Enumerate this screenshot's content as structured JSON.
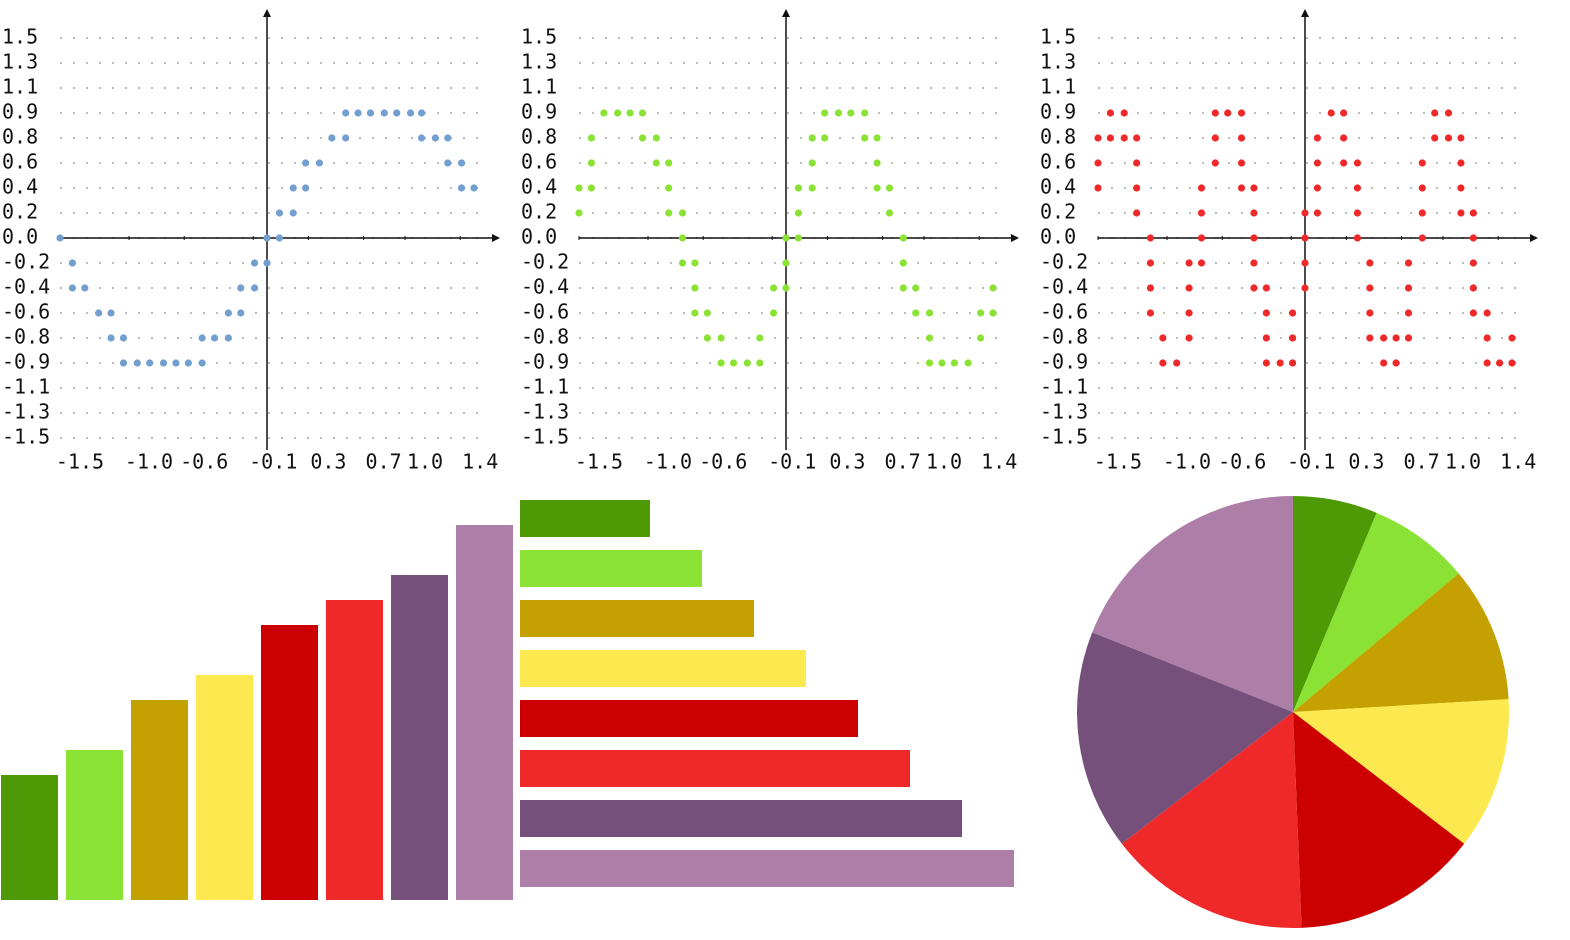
{
  "chart_data": [
    {
      "type": "scatter",
      "color": "#729fcf",
      "xlim": [
        -1.5,
        1.5
      ],
      "ylim": [
        -1.5,
        1.5
      ],
      "grid": true,
      "xticks": [
        -1.5,
        {
          "value": -1,
          "label": "-1.0"
        },
        -0.6,
        -0.1,
        0.3,
        0.7,
        {
          "value": 1,
          "label": "1.0"
        },
        1.4
      ],
      "yticks": [
        1.5,
        {
          "value": 1.3125,
          "label": "1.3"
        },
        {
          "value": 1.125,
          "label": "1.1"
        },
        {
          "value": 0.9375,
          "label": "0.9"
        },
        {
          "value": 0.75,
          "label": "0.8"
        },
        {
          "value": 0.5625,
          "label": "0.6"
        },
        {
          "value": 0.375,
          "label": "0.4"
        },
        {
          "value": 0.1875,
          "label": "0.2"
        },
        {
          "value": 0,
          "label": "0.0"
        },
        {
          "value": -0.1875,
          "label": "-0.2"
        },
        {
          "value": -0.375,
          "label": "-0.4"
        },
        {
          "value": -0.5625,
          "label": "-0.6"
        },
        {
          "value": -0.75,
          "label": "-0.8"
        },
        {
          "value": -0.9375,
          "label": "-0.9"
        },
        {
          "value": -1.125,
          "label": "-1.1"
        },
        {
          "value": -1.3125,
          "label": "-1.3"
        },
        -1.5
      ],
      "x": [
        0.57,
        0.66,
        0.75,
        0.85,
        0.94,
        1.04,
        1.12,
        0.47,
        0.57,
        1.12,
        1.22,
        1.31,
        0.28,
        0.38,
        1.31,
        1.41,
        0.19,
        0.28,
        1.41,
        1.5,
        0.09,
        0.19,
        -1.5,
        0,
        0.09,
        -1.41,
        -0.09,
        0,
        -1.41,
        -1.32,
        -0.19,
        -0.09,
        -1.22,
        -1.13,
        -0.28,
        -0.19,
        -1.13,
        -1.04,
        -0.47,
        -0.38,
        -0.28,
        -1.04,
        -0.94,
        -0.85,
        -0.75,
        -0.66,
        -0.57,
        -0.47
      ],
      "values": [
        0.9375,
        0.9375,
        0.9375,
        0.9375,
        0.9375,
        0.9375,
        0.9375,
        0.75,
        0.75,
        0.75,
        0.75,
        0.75,
        0.5625,
        0.5625,
        0.5625,
        0.5625,
        0.375,
        0.375,
        0.375,
        0.375,
        0.1875,
        0.1875,
        0,
        0,
        0,
        -0.1875,
        -0.1875,
        -0.1875,
        -0.375,
        -0.375,
        -0.375,
        -0.375,
        -0.5625,
        -0.5625,
        -0.5625,
        -0.5625,
        -0.75,
        -0.75,
        -0.75,
        -0.75,
        -0.75,
        -0.9375,
        -0.9375,
        -0.9375,
        -0.9375,
        -0.9375,
        -0.9375,
        -0.9375
      ]
    },
    {
      "type": "scatter",
      "color": "#8ae234",
      "xlim": [
        -1.5,
        1.5
      ],
      "ylim": [
        -1.5,
        1.5
      ],
      "grid": true,
      "xticks": [
        -1.5,
        {
          "value": -1,
          "label": "-1.0"
        },
        -0.6,
        -0.1,
        0.3,
        0.7,
        {
          "value": 1,
          "label": "1.0"
        },
        1.4
      ],
      "yticks": [
        1.5,
        {
          "value": 1.3125,
          "label": "1.3"
        },
        {
          "value": 1.125,
          "label": "1.1"
        },
        {
          "value": 0.9375,
          "label": "0.9"
        },
        {
          "value": 0.75,
          "label": "0.8"
        },
        {
          "value": 0.5625,
          "label": "0.6"
        },
        {
          "value": 0.375,
          "label": "0.4"
        },
        {
          "value": 0.1875,
          "label": "0.2"
        },
        {
          "value": 0,
          "label": "0.0"
        },
        {
          "value": -0.1875,
          "label": "-0.2"
        },
        {
          "value": -0.375,
          "label": "-0.4"
        },
        {
          "value": -0.5625,
          "label": "-0.6"
        },
        {
          "value": -0.75,
          "label": "-0.8"
        },
        {
          "value": -0.9375,
          "label": "-0.9"
        },
        {
          "value": -1.125,
          "label": "-1.1"
        },
        {
          "value": -1.3125,
          "label": "-1.3"
        },
        -1.5
      ],
      "x": [
        -1.32,
        -1.22,
        -1.13,
        -1.04,
        0.28,
        0.38,
        0.47,
        0.57,
        -1.41,
        -1.04,
        -0.94,
        0.19,
        0.28,
        0.57,
        0.66,
        -1.41,
        -0.94,
        -0.85,
        0.19,
        0.66,
        -1.5,
        -1.41,
        -0.85,
        0.09,
        0.19,
        0.66,
        0.75,
        -1.5,
        -0.85,
        -0.75,
        0.09,
        0.75,
        -0.75,
        0,
        0.09,
        0.85,
        -0.75,
        -0.66,
        0,
        0.85,
        -0.66,
        -0.09,
        0,
        0.85,
        0.94,
        1.5,
        -0.66,
        -0.57,
        -0.09,
        0.94,
        1.04,
        1.41,
        1.5,
        -0.57,
        -0.47,
        -0.19,
        1.04,
        1.41,
        -0.47,
        -0.38,
        -0.28,
        -0.19,
        1.04,
        1.13,
        1.22,
        1.32
      ],
      "values": [
        0.9375,
        0.9375,
        0.9375,
        0.9375,
        0.9375,
        0.9375,
        0.9375,
        0.9375,
        0.75,
        0.75,
        0.75,
        0.75,
        0.75,
        0.75,
        0.75,
        0.5625,
        0.5625,
        0.5625,
        0.5625,
        0.5625,
        0.375,
        0.375,
        0.375,
        0.375,
        0.375,
        0.375,
        0.375,
        0.1875,
        0.1875,
        0.1875,
        0.1875,
        0.1875,
        0,
        0,
        0,
        0,
        -0.1875,
        -0.1875,
        -0.1875,
        -0.1875,
        -0.375,
        -0.375,
        -0.375,
        -0.375,
        -0.375,
        -0.375,
        -0.5625,
        -0.5625,
        -0.5625,
        -0.5625,
        -0.5625,
        -0.5625,
        -0.5625,
        -0.75,
        -0.75,
        -0.75,
        -0.75,
        -0.75,
        -0.9375,
        -0.9375,
        -0.9375,
        -0.9375,
        -0.9375,
        -0.9375,
        -0.9375,
        -0.9375
      ]
    },
    {
      "type": "scatter",
      "color": "#ef2929",
      "xlim": [
        -1.5,
        1.5
      ],
      "ylim": [
        -1.5,
        1.5
      ],
      "grid": true,
      "xticks": [
        -1.5,
        {
          "value": -1,
          "label": "-1.0"
        },
        -0.6,
        -0.1,
        0.3,
        0.7,
        {
          "value": 1,
          "label": "1.0"
        },
        1.4
      ],
      "yticks": [
        1.5,
        {
          "value": 1.3125,
          "label": "1.3"
        },
        {
          "value": 1.125,
          "label": "1.1"
        },
        {
          "value": 0.9375,
          "label": "0.9"
        },
        {
          "value": 0.75,
          "label": "0.8"
        },
        {
          "value": 0.5625,
          "label": "0.6"
        },
        {
          "value": 0.375,
          "label": "0.4"
        },
        {
          "value": 0.1875,
          "label": "0.2"
        },
        {
          "value": 0,
          "label": "0.0"
        },
        {
          "value": -0.1875,
          "label": "-0.2"
        },
        {
          "value": -0.375,
          "label": "-0.4"
        },
        {
          "value": -0.5625,
          "label": "-0.6"
        },
        {
          "value": -0.75,
          "label": "-0.8"
        },
        {
          "value": -0.9375,
          "label": "-0.9"
        },
        {
          "value": -1.125,
          "label": "-1.1"
        },
        {
          "value": -1.3125,
          "label": "-1.3"
        },
        -1.5
      ],
      "x": [
        -1.41,
        -1.31,
        -0.65,
        -0.56,
        -0.46,
        0.19,
        0.28,
        0.94,
        1.04,
        -1.5,
        -1.41,
        -1.31,
        -1.22,
        -0.65,
        -0.46,
        0.09,
        0.28,
        0.94,
        1.04,
        1.13,
        -1.5,
        -1.22,
        -0.65,
        -0.46,
        0.09,
        0.28,
        0.38,
        0.85,
        1.13,
        -1.5,
        -1.22,
        -0.75,
        -0.46,
        -0.37,
        0.09,
        0.38,
        0.85,
        1.13,
        -1.22,
        -0.75,
        -0.37,
        0,
        0.09,
        0.38,
        0.85,
        1.13,
        1.22,
        -1.12,
        -0.75,
        -0.37,
        0,
        0.38,
        0.85,
        1.22,
        -1.12,
        -0.84,
        -0.75,
        -0.37,
        0,
        0.47,
        0.75,
        1.22,
        -1.12,
        -0.84,
        -0.37,
        -0.28,
        0,
        0.47,
        0.75,
        1.22,
        -1.12,
        -0.84,
        -0.28,
        -0.09,
        0.47,
        0.75,
        1.22,
        1.32,
        -1.03,
        -0.84,
        -0.28,
        -0.09,
        0.47,
        0.57,
        0.66,
        0.75,
        1.32,
        1.5,
        -1.03,
        -0.93,
        -0.28,
        -0.18,
        -0.09,
        0.57,
        0.66,
        1.32,
        1.41,
        1.5
      ],
      "values": [
        0.9375,
        0.9375,
        0.9375,
        0.9375,
        0.9375,
        0.9375,
        0.9375,
        0.9375,
        0.9375,
        0.75,
        0.75,
        0.75,
        0.75,
        0.75,
        0.75,
        0.75,
        0.75,
        0.75,
        0.75,
        0.75,
        0.5625,
        0.5625,
        0.5625,
        0.5625,
        0.5625,
        0.5625,
        0.5625,
        0.5625,
        0.5625,
        0.375,
        0.375,
        0.375,
        0.375,
        0.375,
        0.375,
        0.375,
        0.375,
        0.375,
        0.1875,
        0.1875,
        0.1875,
        0.1875,
        0.1875,
        0.1875,
        0.1875,
        0.1875,
        0.1875,
        0,
        0,
        0,
        0,
        0,
        0,
        0,
        -0.1875,
        -0.1875,
        -0.1875,
        -0.1875,
        -0.1875,
        -0.1875,
        -0.1875,
        -0.1875,
        -0.375,
        -0.375,
        -0.375,
        -0.375,
        -0.375,
        -0.375,
        -0.375,
        -0.375,
        -0.5625,
        -0.5625,
        -0.5625,
        -0.5625,
        -0.5625,
        -0.5625,
        -0.5625,
        -0.5625,
        -0.75,
        -0.75,
        -0.75,
        -0.75,
        -0.75,
        -0.75,
        -0.75,
        -0.75,
        -0.75,
        -0.75,
        -0.9375,
        -0.9375,
        -0.9375,
        -0.9375,
        -0.9375,
        -0.9375,
        -0.9375,
        -0.9375,
        -0.9375,
        -0.9375
      ]
    },
    {
      "type": "bar",
      "values": [
        5,
        6,
        8,
        9,
        11,
        12,
        13,
        15
      ],
      "colors": [
        "#4e9a06",
        "#8ae234",
        "#c4a000",
        "#fce94f",
        "#cc0000",
        "#ef2929",
        "#75507b",
        "#ad7fa8"
      ]
    },
    {
      "type": "hbar",
      "values": [
        5,
        7,
        9,
        11,
        13,
        15,
        17,
        19
      ],
      "colors": [
        "#4e9a06",
        "#8ae234",
        "#c4a000",
        "#fce94f",
        "#cc0000",
        "#ef2929",
        "#75507b",
        "#ad7fa8"
      ]
    },
    {
      "type": "pie",
      "values": [
        5,
        6,
        8,
        9,
        11,
        12,
        13,
        15
      ],
      "colors": [
        "#4e9a06",
        "#8ae234",
        "#c4a000",
        "#fce94f",
        "#cc0000",
        "#ef2929",
        "#75507b",
        "#ad7fa8"
      ]
    }
  ]
}
